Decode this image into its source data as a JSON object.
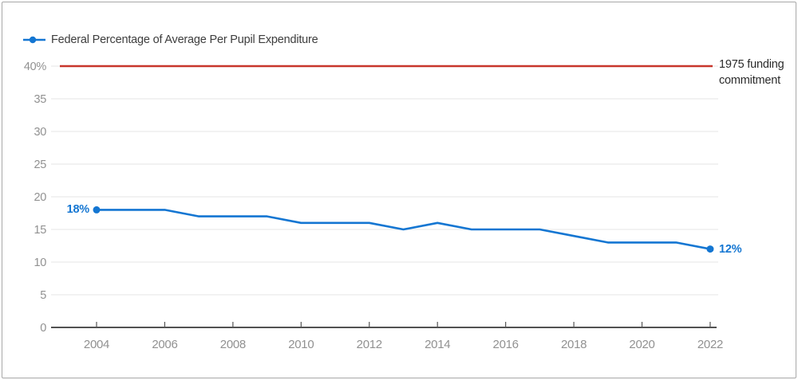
{
  "legend": {
    "label": "Federal Percentage of Average Per Pupil Expenditure"
  },
  "annotations": {
    "start_label": "18%",
    "end_label": "12%",
    "ref_label_line1": "1975 funding",
    "ref_label_line2": "commitment"
  },
  "colors": {
    "line": "#1476d2",
    "ref_line": "#c8362b",
    "grid": "#e9e9e9",
    "axis": "#3a3a3a",
    "tick": "#555555",
    "tick_label": "#919191",
    "point_label": "#1476d2"
  },
  "chart_data": {
    "type": "line",
    "title": "",
    "xlabel": "",
    "ylabel": "",
    "grid": "horizontal",
    "legend_position": "top-left",
    "xlim": [
      2003,
      2022.3
    ],
    "ylim": [
      0,
      40
    ],
    "x_ticks": [
      2004,
      2006,
      2008,
      2010,
      2012,
      2014,
      2016,
      2018,
      2020,
      2022
    ],
    "y_ticks": [
      0,
      5,
      10,
      15,
      20,
      25,
      30,
      35,
      40
    ],
    "y_tick_labels": [
      "0",
      "5",
      "10",
      "15",
      "20",
      "25",
      "30",
      "35",
      "40%"
    ],
    "series": [
      {
        "name": "Federal Percentage of Average Per Pupil Expenditure",
        "x": [
          2004,
          2005,
          2006,
          2007,
          2008,
          2009,
          2010,
          2011,
          2012,
          2013,
          2014,
          2015,
          2016,
          2017,
          2018,
          2019,
          2020,
          2021,
          2022
        ],
        "values": [
          18,
          18,
          18,
          17,
          17,
          17,
          16,
          16,
          16,
          15,
          16,
          15,
          15,
          15,
          14,
          13,
          13,
          13,
          12
        ]
      }
    ],
    "ref_line": {
      "value": 40,
      "label": "1975 funding commitment"
    },
    "endpoint_labels": {
      "first": "18%",
      "last": "12%"
    }
  }
}
